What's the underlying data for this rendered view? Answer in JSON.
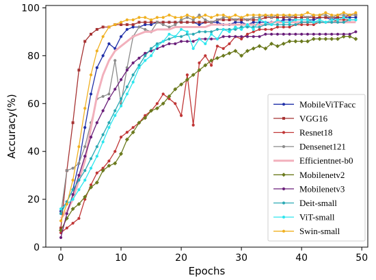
{
  "chart_data": {
    "type": "line",
    "title": "",
    "xlabel": "Epochs",
    "ylabel": "Accuracy(%)",
    "xlim": [
      -2.5,
      51
    ],
    "ylim": [
      0,
      101
    ],
    "xticks": [
      0,
      10,
      20,
      30,
      40,
      50
    ],
    "yticks": [
      0,
      20,
      40,
      60,
      80,
      100
    ],
    "grid": false,
    "legend_position": "bottom-right",
    "x": [
      0,
      1,
      2,
      3,
      4,
      5,
      6,
      7,
      8,
      9,
      10,
      11,
      12,
      13,
      14,
      15,
      16,
      17,
      18,
      19,
      20,
      21,
      22,
      23,
      24,
      25,
      26,
      27,
      28,
      29,
      30,
      31,
      32,
      33,
      34,
      35,
      36,
      37,
      38,
      39,
      40,
      41,
      42,
      43,
      44,
      45,
      46,
      47,
      48,
      49
    ],
    "series": [
      {
        "name": "MobileViTFacc",
        "color": "#1f2fa8",
        "marker": "dot",
        "values": [
          15,
          19,
          24,
          35,
          50,
          64,
          75,
          80,
          85,
          83,
          88,
          91,
          92,
          92,
          93,
          93,
          94,
          94,
          94,
          94,
          94,
          94,
          94,
          93,
          94,
          94,
          94,
          93,
          93,
          94,
          94,
          93,
          94,
          94,
          94,
          94,
          94,
          95,
          95,
          95,
          95,
          95,
          95,
          96,
          96,
          95,
          96,
          96,
          96,
          96
        ]
      },
      {
        "name": "VGG16",
        "color": "#a63232",
        "marker": "square",
        "values": [
          8,
          32,
          52,
          74,
          86,
          89,
          91,
          92,
          92,
          93,
          93,
          93,
          93,
          94,
          94,
          94,
          94,
          94,
          94,
          94,
          94,
          94,
          94,
          94,
          94,
          94,
          95,
          95,
          95,
          95,
          95,
          95,
          95,
          95,
          96,
          96,
          96,
          96,
          96,
          96,
          96,
          96,
          96,
          96,
          96,
          96,
          96,
          96,
          97,
          97
        ]
      },
      {
        "name": "Resnet18",
        "color": "#c03535",
        "marker": "dot",
        "values": [
          6,
          8,
          10,
          12,
          20,
          26,
          31,
          33,
          36,
          40,
          46,
          48,
          50,
          52,
          55,
          57,
          60,
          64,
          62,
          60,
          55,
          72,
          51,
          77,
          80,
          76,
          84,
          83,
          85,
          88,
          87,
          89,
          90,
          91,
          91,
          91,
          92,
          92,
          92,
          93,
          93,
          93,
          93,
          94,
          94,
          94,
          95,
          95,
          95,
          95
        ]
      },
      {
        "name": "Densenet121",
        "color": "#8a8a8a",
        "marker": "dot",
        "values": [
          14,
          32,
          33,
          35,
          42,
          52,
          62,
          63,
          64,
          78,
          60,
          75,
          88,
          92,
          91,
          90,
          94,
          93,
          92,
          93,
          95,
          96,
          95,
          97,
          95,
          94,
          95,
          96,
          96,
          95,
          96,
          95,
          96,
          96,
          97,
          96,
          97,
          97,
          96,
          97,
          97,
          96,
          97,
          97,
          97,
          96,
          97,
          97,
          97,
          97
        ]
      },
      {
        "name": "Efficientnet-b0",
        "color": "#f2b0bc",
        "marker": "none",
        "values": [
          12,
          15,
          20,
          28,
          36,
          50,
          63,
          72,
          78,
          82,
          84,
          86,
          88,
          89,
          90,
          90,
          91,
          91,
          91,
          92,
          92,
          92,
          92,
          92,
          92,
          93,
          93,
          93,
          93,
          93,
          93,
          93,
          93,
          93,
          93,
          94,
          94,
          94,
          94,
          94,
          94,
          94,
          94,
          94,
          94,
          94,
          94,
          94,
          94,
          94
        ]
      },
      {
        "name": "Mobilenetv2",
        "color": "#6b7a1e",
        "marker": "diamond",
        "values": [
          7,
          12,
          16,
          18,
          21,
          25,
          27,
          32,
          34,
          35,
          39,
          45,
          48,
          52,
          54,
          57,
          58,
          60,
          63,
          66,
          68,
          70,
          72,
          74,
          76,
          78,
          79,
          80,
          81,
          82,
          80,
          82,
          83,
          84,
          83,
          85,
          84,
          85,
          86,
          86,
          86,
          86,
          87,
          87,
          87,
          87,
          87,
          88,
          88,
          87
        ]
      },
      {
        "name": "Mobilenetv3",
        "color": "#6a1f7a",
        "marker": "dot",
        "values": [
          4,
          14,
          22,
          30,
          38,
          46,
          52,
          57,
          62,
          66,
          70,
          74,
          77,
          79,
          81,
          82,
          83,
          84,
          85,
          85,
          86,
          86,
          86,
          87,
          87,
          87,
          87,
          88,
          88,
          88,
          88,
          88,
          88,
          88,
          89,
          89,
          89,
          89,
          89,
          89,
          89,
          89,
          89,
          89,
          89,
          89,
          89,
          89,
          89,
          90
        ]
      },
      {
        "name": "Deit-small",
        "color": "#2aa9b3",
        "marker": "dot",
        "values": [
          14,
          19,
          24,
          28,
          32,
          37,
          42,
          47,
          52,
          57,
          62,
          67,
          72,
          76,
          80,
          83,
          85,
          86,
          87,
          88,
          88,
          89,
          89,
          90,
          90,
          90,
          91,
          91,
          91,
          91,
          92,
          92,
          92,
          92,
          93,
          93,
          93,
          93,
          93,
          93,
          94,
          94,
          94,
          94,
          94,
          94,
          94,
          94,
          95,
          95
        ]
      },
      {
        "name": "ViT-small",
        "color": "#2ee6ee",
        "marker": "dot",
        "values": [
          16,
          18,
          20,
          24,
          28,
          33,
          38,
          44,
          50,
          55,
          59,
          64,
          69,
          75,
          78,
          80,
          84,
          86,
          89,
          88,
          91,
          90,
          83,
          87,
          85,
          89,
          87,
          91,
          90,
          92,
          91,
          93,
          91,
          95,
          94,
          93,
          95,
          94,
          94,
          95,
          95,
          95,
          94,
          95,
          94,
          95,
          95,
          96,
          95,
          95
        ]
      },
      {
        "name": "Swin-small",
        "color": "#f0b020",
        "marker": "dot",
        "values": [
          11,
          18,
          28,
          42,
          58,
          72,
          82,
          88,
          92,
          93,
          94,
          95,
          95,
          96,
          96,
          95,
          96,
          96,
          97,
          96,
          96,
          97,
          96,
          96,
          97,
          96,
          97,
          97,
          96,
          97,
          96,
          97,
          97,
          97,
          97,
          97,
          97,
          97,
          97,
          97,
          97,
          98,
          97,
          97,
          98,
          97,
          97,
          98,
          97,
          98
        ]
      }
    ]
  }
}
